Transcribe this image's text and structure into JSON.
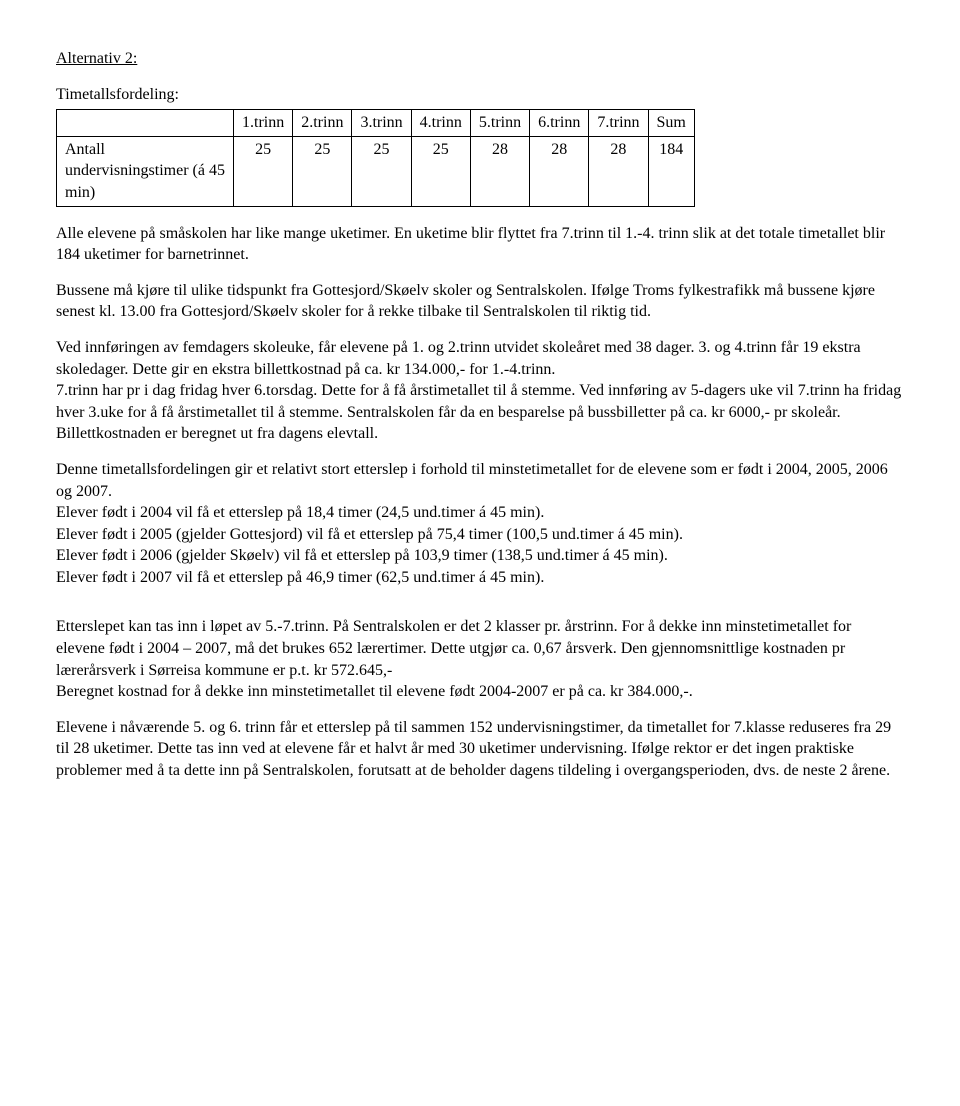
{
  "heading": "Alternativ 2:",
  "subheading": "Timetallsfordeling:",
  "table": {
    "row_label": "Antall undervisningstimer (á 45 min)",
    "columns": [
      "1.trinn",
      "2.trinn",
      "3.trinn",
      "4.trinn",
      "5.trinn",
      "6.trinn",
      "7.trinn",
      "Sum"
    ],
    "values": [
      "25",
      "25",
      "25",
      "25",
      "28",
      "28",
      "28",
      "184"
    ]
  },
  "p1": "Alle elevene på småskolen har like mange uketimer. En uketime blir flyttet fra 7.trinn til 1.-4. trinn slik at det totale timetallet blir 184 uketimer for barnetrinnet.",
  "p2": "Bussene må kjøre til ulike tidspunkt fra Gottesjord/Skøelv skoler og Sentralskolen. Ifølge Troms fylkestrafikk må bussene kjøre senest kl. 13.00 fra Gottesjord/Skøelv skoler for å rekke tilbake til Sentralskolen til riktig tid.",
  "p3": "Ved innføringen av femdagers skoleuke, får elevene på 1. og 2.trinn utvidet skoleåret med 38 dager. 3. og 4.trinn får 19 ekstra skoledager. Dette gir en ekstra billettkostnad på ca. kr 134.000,- for 1.-4.trinn.",
  "p4": "7.trinn har pr i dag fridag hver 6.torsdag. Dette for å få årstimetallet til å stemme. Ved innføring av 5-dagers uke vil 7.trinn ha fridag hver 3.uke for å få årstimetallet til å stemme. Sentralskolen får da en besparelse på bussbilletter på ca. kr 6000,- pr skoleår.",
  "p5": "Billettkostnaden er beregnet ut fra dagens elevtall.",
  "p6": "Denne timetallsfordelingen gir et relativt stort etterslep i forhold til minstetimetallet for de elevene som er født i 2004, 2005, 2006 og 2007.",
  "p6a": "Elever født i 2004 vil få et etterslep på 18,4 timer (24,5 und.timer á 45 min).",
  "p6b": "Elever født i 2005 (gjelder Gottesjord) vil få et etterslep på 75,4 timer (100,5 und.timer á 45 min).",
  "p6c": "Elever født i 2006 (gjelder Skøelv) vil få et etterslep på 103,9 timer (138,5 und.timer á 45 min).",
  "p6d": "Elever født i 2007 vil få et etterslep på 46,9 timer (62,5 und.timer á 45 min).",
  "p7": "Etterslepet kan tas inn i løpet av 5.-7.trinn. På Sentralskolen er det 2 klasser pr. årstrinn. For å dekke inn minstetimetallet for elevene født i 2004 – 2007, må det brukes 652 lærertimer. Dette utgjør ca. 0,67 årsverk. Den gjennomsnittlige kostnaden pr lærerårsverk i Sørreisa kommune er p.t. kr 572.645,-",
  "p7b": "Beregnet kostnad for å dekke inn minstetimetallet til elevene født 2004-2007 er på ca. kr 384.000,-.",
  "p8": "Elevene i nåværende 5. og 6. trinn får et etterslep på til sammen 152 undervisningstimer, da timetallet for 7.klasse reduseres fra 29 til 28 uketimer. Dette tas inn ved at elevene får et halvt år med 30 uketimer undervisning. Ifølge rektor er det ingen praktiske problemer med å ta dette inn på Sentralskolen, forutsatt at de beholder dagens tildeling i overgangsperioden, dvs. de neste 2 årene."
}
